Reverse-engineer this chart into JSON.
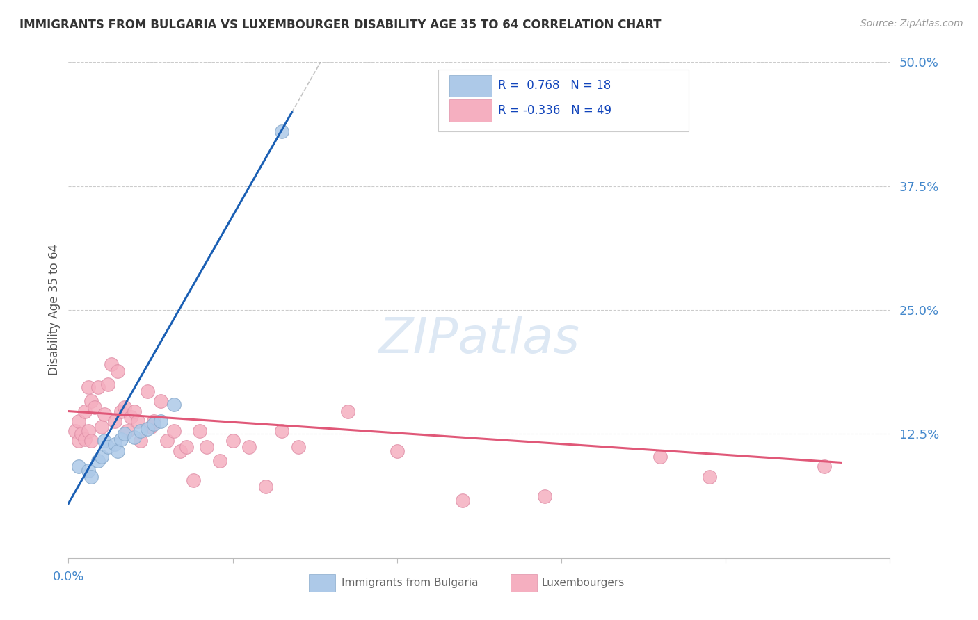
{
  "title": "IMMIGRANTS FROM BULGARIA VS LUXEMBOURGER DISABILITY AGE 35 TO 64 CORRELATION CHART",
  "source": "Source: ZipAtlas.com",
  "ylabel": "Disability Age 35 to 64",
  "xlim": [
    0.0,
    0.25
  ],
  "ylim": [
    0.0,
    0.5
  ],
  "ytick_vals": [
    0.125,
    0.25,
    0.375,
    0.5
  ],
  "xtick_vals": [
    0.0,
    0.05,
    0.1,
    0.15,
    0.2,
    0.25
  ],
  "r_bulgaria": 0.768,
  "n_bulgaria": 18,
  "r_luxembourg": -0.336,
  "n_luxembourg": 49,
  "blue_color": "#adc9e8",
  "pink_color": "#f5afc0",
  "blue_line_color": "#1a5fb4",
  "pink_line_color": "#e05878",
  "dot_edge_blue": "#88aacc",
  "dot_edge_pink": "#e090a8",
  "background_color": "#ffffff",
  "grid_color": "#cccccc",
  "title_color": "#333333",
  "source_color": "#999999",
  "axis_label_color": "#4488cc",
  "legend_r_color": "#1144bb",
  "watermark_color": "#dde8f4",
  "blue_scatter_x": [
    0.003,
    0.006,
    0.007,
    0.009,
    0.01,
    0.011,
    0.012,
    0.014,
    0.015,
    0.016,
    0.017,
    0.02,
    0.022,
    0.024,
    0.026,
    0.028,
    0.032,
    0.065
  ],
  "blue_scatter_y": [
    0.092,
    0.088,
    0.082,
    0.098,
    0.102,
    0.118,
    0.112,
    0.115,
    0.108,
    0.12,
    0.125,
    0.122,
    0.128,
    0.13,
    0.135,
    0.138,
    0.155,
    0.43
  ],
  "pink_scatter_x": [
    0.002,
    0.003,
    0.003,
    0.004,
    0.005,
    0.005,
    0.006,
    0.006,
    0.007,
    0.007,
    0.008,
    0.009,
    0.01,
    0.011,
    0.012,
    0.013,
    0.014,
    0.015,
    0.016,
    0.017,
    0.018,
    0.019,
    0.02,
    0.021,
    0.022,
    0.024,
    0.025,
    0.026,
    0.028,
    0.03,
    0.032,
    0.034,
    0.036,
    0.038,
    0.04,
    0.042,
    0.046,
    0.05,
    0.055,
    0.06,
    0.065,
    0.07,
    0.085,
    0.1,
    0.12,
    0.145,
    0.18,
    0.195,
    0.23
  ],
  "pink_scatter_y": [
    0.128,
    0.138,
    0.118,
    0.125,
    0.148,
    0.12,
    0.172,
    0.128,
    0.158,
    0.118,
    0.152,
    0.172,
    0.132,
    0.145,
    0.175,
    0.195,
    0.138,
    0.188,
    0.148,
    0.152,
    0.128,
    0.142,
    0.148,
    0.138,
    0.118,
    0.168,
    0.132,
    0.138,
    0.158,
    0.118,
    0.128,
    0.108,
    0.112,
    0.078,
    0.128,
    0.112,
    0.098,
    0.118,
    0.112,
    0.072,
    0.128,
    0.112,
    0.148,
    0.108,
    0.058,
    0.062,
    0.102,
    0.082,
    0.092
  ],
  "blue_slope": 5.8,
  "blue_intercept": 0.055,
  "blue_line_x0": 0.0,
  "blue_line_x1": 0.068,
  "pink_slope": -0.22,
  "pink_intercept": 0.148,
  "pink_line_x0": 0.0,
  "pink_line_x1": 0.235,
  "dash_line_x0": 0.03,
  "dash_line_x1": 0.125
}
